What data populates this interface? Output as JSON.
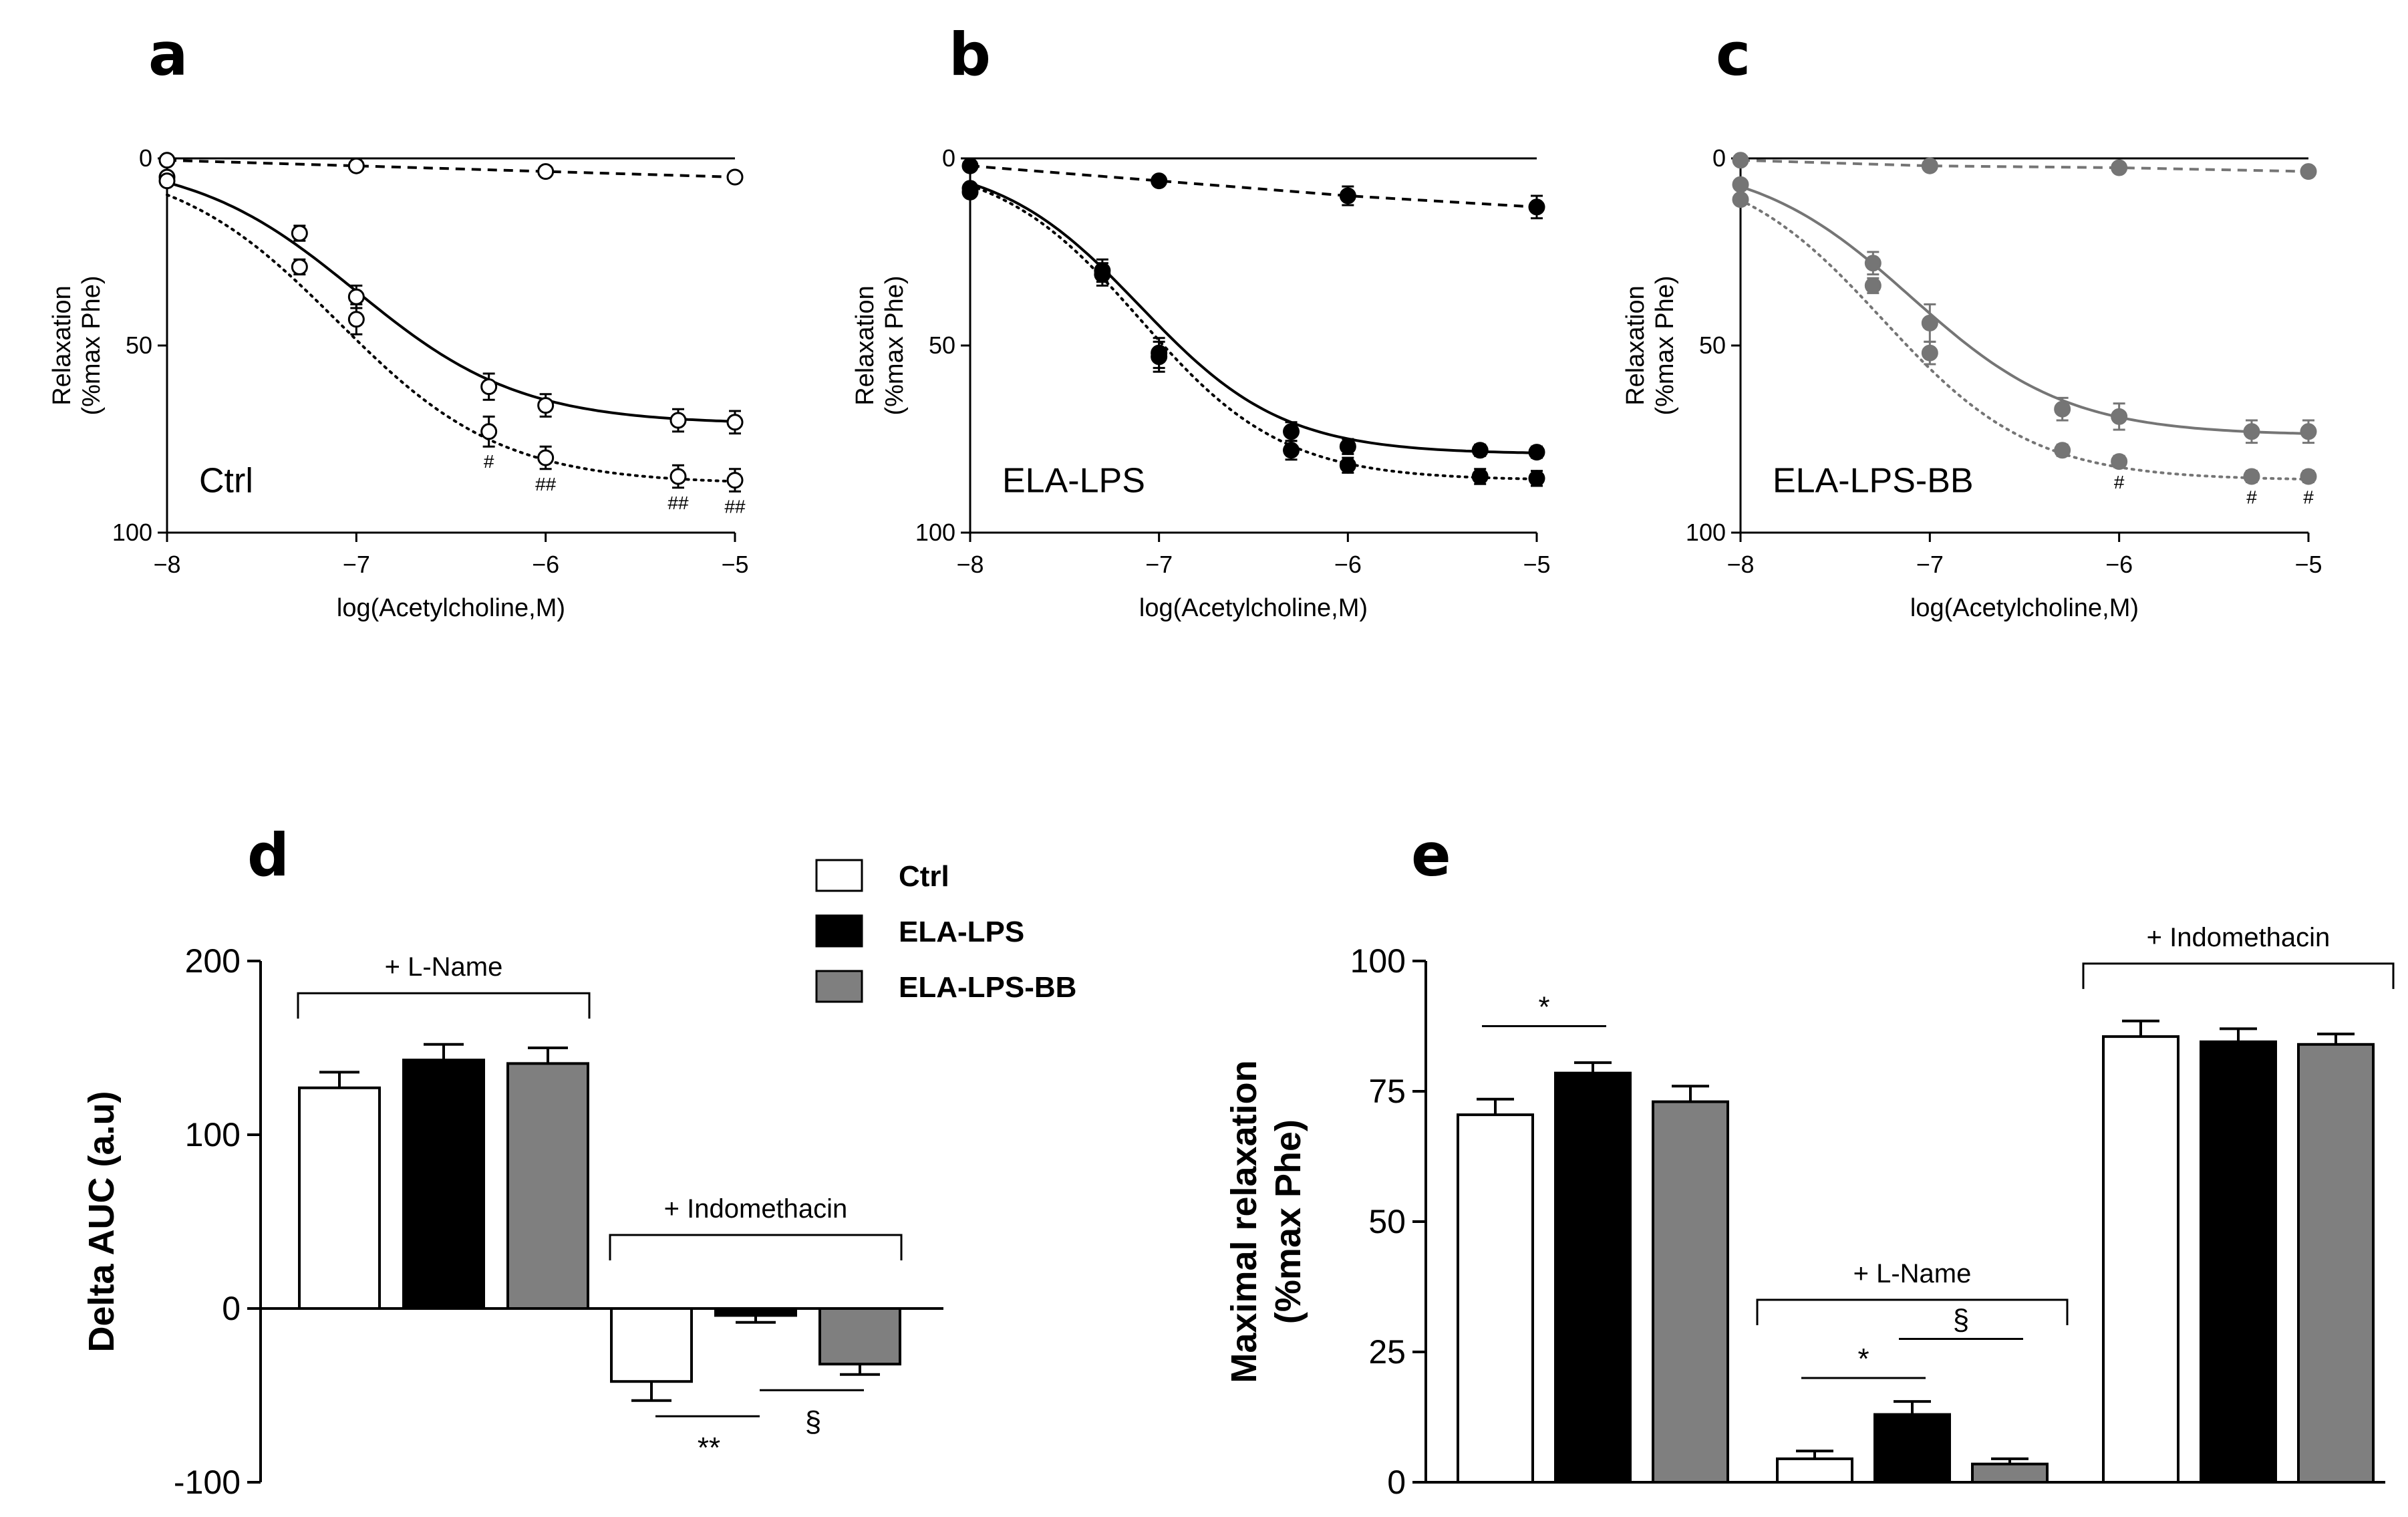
{
  "colors": {
    "ctrl": "#ffffff",
    "ela_lps": "#000000",
    "ela_lps_bb": "#7f7f7f",
    "curve_gray": "#757575",
    "axis": "#000000"
  },
  "chart_data": [
    {
      "panel": "a",
      "type": "line",
      "inner_label": "Ctrl",
      "ylabel_line1": "Relaxation",
      "ylabel_line2": "(%max Phe)",
      "xlabel": "log(Acetylcholine,M)",
      "xlim": [
        -8,
        -5
      ],
      "ylim": [
        0,
        100
      ],
      "y_inverted": true,
      "xticks": [
        -8,
        -7,
        -6,
        -5
      ],
      "xtick_labels": [
        "−8",
        "−7",
        "−6",
        "−5"
      ],
      "yticks": [
        0,
        50,
        100
      ],
      "ytick_labels": [
        "0",
        "50",
        "100"
      ],
      "marker": "open-circle",
      "series": [
        {
          "name": "baseline",
          "style": "solid-line",
          "x": [
            -8,
            -5
          ],
          "y": [
            0,
            0
          ]
        },
        {
          "name": "solid fit",
          "style": "solid",
          "x": [
            -8,
            -7.3,
            -7,
            -6.3,
            -6,
            -5.3,
            -5
          ],
          "y": [
            5,
            20,
            37,
            61,
            66,
            70,
            70.5
          ],
          "err": [
            1,
            2,
            3,
            3.5,
            3,
            3,
            3
          ],
          "fit": {
            "bottom": 0,
            "top": 71,
            "logEC50": -7.0,
            "hill": 1.0
          }
        },
        {
          "name": "dotted fit",
          "style": "dotted",
          "x": [
            -8,
            -7.3,
            -7,
            -6.3,
            -6,
            -5.3,
            -5
          ],
          "y": [
            6,
            29,
            43,
            73,
            80,
            85,
            86
          ],
          "err": [
            1,
            2,
            4,
            4,
            3,
            3,
            3
          ],
          "fit": {
            "bottom": 0,
            "top": 87,
            "logEC50": -7.1,
            "hill": 1.0
          }
        },
        {
          "name": "dashed",
          "style": "dashed",
          "x": [
            -8,
            -7,
            -6,
            -5
          ],
          "y": [
            0.5,
            2,
            3.5,
            5
          ],
          "err": [
            0,
            0,
            0,
            0
          ]
        }
      ],
      "significance": [
        {
          "x": -6.3,
          "label": "#"
        },
        {
          "x": -6,
          "label": "##"
        },
        {
          "x": -5.3,
          "label": "##"
        },
        {
          "x": -5,
          "label": "##"
        }
      ]
    },
    {
      "panel": "b",
      "type": "line",
      "inner_label": "ELA-LPS",
      "ylabel_line1": "Relaxation",
      "ylabel_line2": "(%max Phe)",
      "xlabel": "log(Acetylcholine,M)",
      "xlim": [
        -8,
        -5
      ],
      "ylim": [
        0,
        100
      ],
      "y_inverted": true,
      "xticks": [
        -8,
        -7,
        -6,
        -5
      ],
      "xtick_labels": [
        "−8",
        "−7",
        "−6",
        "−5"
      ],
      "yticks": [
        0,
        50,
        100
      ],
      "ytick_labels": [
        "0",
        "50",
        "100"
      ],
      "marker": "filled-circle",
      "series": [
        {
          "name": "baseline",
          "style": "solid-line",
          "x": [
            -8,
            -5
          ],
          "y": [
            0,
            0
          ]
        },
        {
          "name": "solid fit",
          "style": "solid",
          "x": [
            -8,
            -7.3,
            -7,
            -6.3,
            -6,
            -5.3,
            -5
          ],
          "y": [
            8,
            31,
            52,
            73,
            77,
            78,
            78.5
          ],
          "err": [
            1,
            3,
            4,
            2.5,
            2,
            1.5,
            1.5
          ],
          "fit": {
            "bottom": 0,
            "top": 79,
            "logEC50": -7.1,
            "hill": 1.15
          }
        },
        {
          "name": "dotted fit",
          "style": "dotted",
          "x": [
            -8,
            -7.3,
            -7,
            -6.3,
            -6,
            -5.3,
            -5
          ],
          "y": [
            9,
            30,
            53,
            78,
            82,
            85,
            85.5
          ],
          "err": [
            1,
            3,
            4,
            2.5,
            2,
            2,
            2
          ],
          "fit": {
            "bottom": 0,
            "top": 86,
            "logEC50": -7.1,
            "hill": 1.15
          }
        },
        {
          "name": "dashed",
          "style": "dashed",
          "x": [
            -8,
            -7,
            -6,
            -5
          ],
          "y": [
            2,
            6,
            10,
            13
          ],
          "err": [
            0,
            0,
            2.5,
            3
          ]
        }
      ],
      "significance": []
    },
    {
      "panel": "c",
      "type": "line",
      "inner_label": "ELA-LPS-BB",
      "ylabel_line1": "Relaxation",
      "ylabel_line2": "(%max Phe)",
      "xlabel": "log(Acetylcholine,M)",
      "xlim": [
        -8,
        -5
      ],
      "ylim": [
        0,
        100
      ],
      "y_inverted": true,
      "xticks": [
        -8,
        -7,
        -6,
        -5
      ],
      "xtick_labels": [
        "−8",
        "−7",
        "−6",
        "−5"
      ],
      "yticks": [
        0,
        50,
        100
      ],
      "ytick_labels": [
        "0",
        "50",
        "100"
      ],
      "marker": "gray-filled-circle",
      "series": [
        {
          "name": "baseline",
          "style": "solid-line",
          "x": [
            -8,
            -5
          ],
          "y": [
            0,
            0
          ]
        },
        {
          "name": "solid fit",
          "style": "solid",
          "x": [
            -8,
            -7.3,
            -7,
            -6.3,
            -6,
            -5.3,
            -5
          ],
          "y": [
            7,
            28,
            44,
            67,
            69,
            73,
            73
          ],
          "err": [
            1,
            3,
            5,
            3,
            3.5,
            3,
            3
          ],
          "fit": {
            "bottom": 0,
            "top": 74,
            "logEC50": -7.1,
            "hill": 1.05
          }
        },
        {
          "name": "dotted fit",
          "style": "dotted",
          "x": [
            -8,
            -7.3,
            -7,
            -6.3,
            -6,
            -5.3,
            -5
          ],
          "y": [
            11,
            34,
            52,
            78,
            81,
            85,
            85
          ],
          "err": [
            1,
            2,
            3,
            1.5,
            1.5,
            1.5,
            1.5
          ],
          "fit": {
            "bottom": 0,
            "top": 86,
            "logEC50": -7.25,
            "hill": 1.1
          }
        },
        {
          "name": "dashed",
          "style": "dashed",
          "x": [
            -8,
            -7,
            -6,
            -5
          ],
          "y": [
            0.5,
            2,
            2.5,
            3.5
          ],
          "err": [
            0,
            0,
            0,
            0
          ]
        }
      ],
      "significance": [
        {
          "x": -6,
          "label": "#"
        },
        {
          "x": -5.3,
          "label": "#"
        },
        {
          "x": -5,
          "label": "#"
        }
      ]
    },
    {
      "panel": "d",
      "type": "bar",
      "ylabel": "Delta AUC (a.u)",
      "ylim": [
        -100,
        200
      ],
      "yticks": [
        -100,
        0,
        100,
        200
      ],
      "ytick_labels": [
        "-100",
        "0",
        "100",
        "200"
      ],
      "groups": [
        {
          "label": "+ L-Name",
          "values": [
            127,
            143,
            141
          ],
          "err": [
            9,
            9,
            9
          ]
        },
        {
          "label": "+ Indomethacin",
          "values": [
            -42,
            -4,
            -32
          ],
          "err": [
            11,
            4,
            6
          ]
        }
      ],
      "significance": [
        {
          "label": "**",
          "group": 1,
          "from": 0,
          "to": 1
        },
        {
          "label": "§",
          "group": 1,
          "from": 1,
          "to": 2
        }
      ]
    },
    {
      "panel": "e",
      "type": "bar",
      "ylabel_line1": "Maximal relaxation",
      "ylabel_line2": "(%max Phe)",
      "ylim": [
        0,
        100
      ],
      "yticks": [
        0,
        25,
        50,
        75,
        100
      ],
      "ytick_labels": [
        "0",
        "25",
        "50",
        "75",
        "100"
      ],
      "groups": [
        {
          "label": "",
          "values": [
            70.5,
            78.5,
            73
          ],
          "err": [
            3,
            2,
            3
          ]
        },
        {
          "label": "+ L-Name",
          "values": [
            4.5,
            13,
            3.5
          ],
          "err": [
            1.5,
            2.5,
            1
          ]
        },
        {
          "label": "+ Indomethacin",
          "values": [
            85.5,
            84.5,
            84
          ],
          "err": [
            3,
            2.5,
            2
          ]
        }
      ],
      "significance": [
        {
          "label": "*",
          "group": 0,
          "from": 0,
          "to": 1
        },
        {
          "label": "*",
          "group": 1,
          "from": 0,
          "to": 1
        },
        {
          "label": "§",
          "group": 1,
          "from": 1,
          "to": 2
        }
      ]
    }
  ],
  "legend": {
    "items": [
      "Ctrl",
      "ELA-LPS",
      "ELA-LPS-BB"
    ]
  }
}
